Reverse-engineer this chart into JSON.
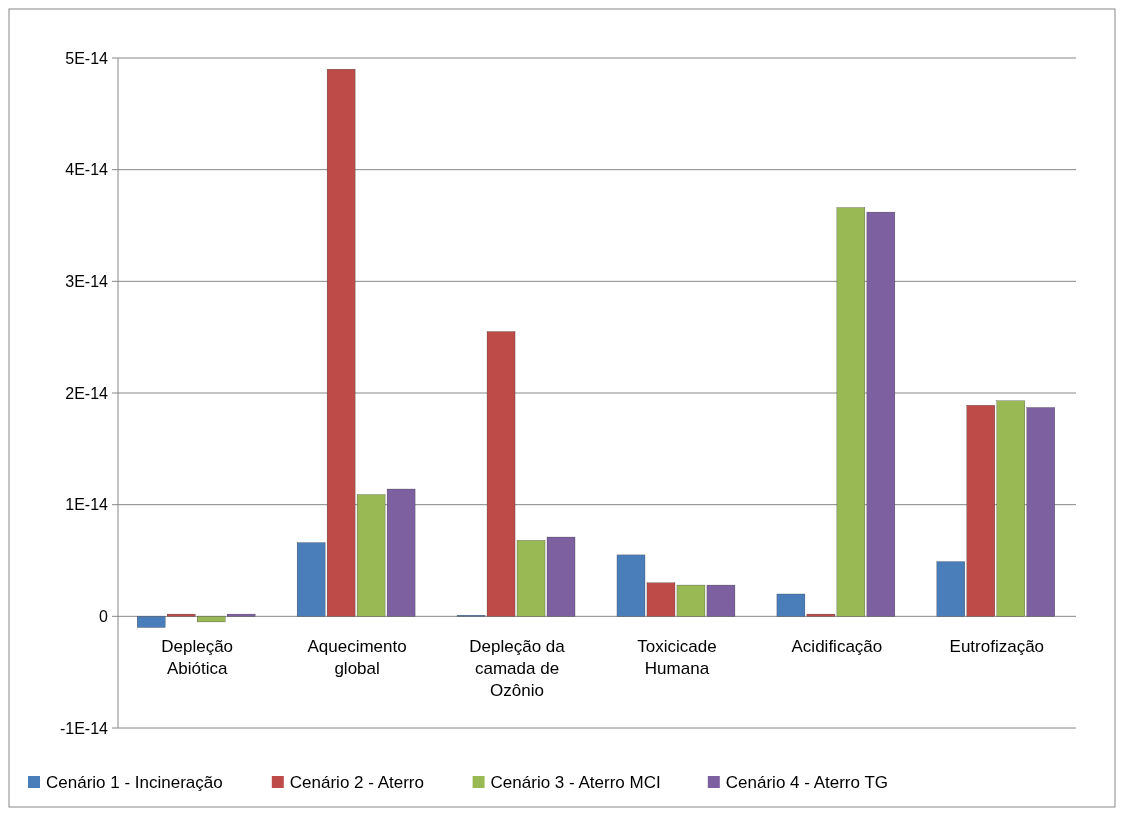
{
  "chart_data": {
    "type": "bar",
    "categories": [
      "Depleção Abiótica",
      "Aquecimento global",
      "Depleção da camada de Ozônio",
      "Toxicicade Humana",
      "Acidificação",
      "Eutrofização"
    ],
    "series": [
      {
        "name": "Cenário 1 - Incineração",
        "color": "#4a7ebb",
        "values": [
          -1e-15,
          6.6e-15,
          1e-16,
          5.5e-15,
          2e-15,
          4.9e-15
        ]
      },
      {
        "name": "Cenário 2 - Aterro",
        "color": "#be4b48",
        "values": [
          2e-16,
          4.9e-14,
          2.55e-14,
          3e-15,
          2e-16,
          1.89e-14
        ]
      },
      {
        "name": "Cenário 3 - Aterro MCI",
        "color": "#98b954",
        "values": [
          -5e-16,
          1.09e-14,
          6.8e-15,
          2.8e-15,
          3.66e-14,
          1.93e-14
        ]
      },
      {
        "name": "Cenário 4 - Aterro TG",
        "color": "#7d60a0",
        "values": [
          2e-16,
          1.14e-14,
          7.1e-15,
          2.8e-15,
          3.62e-14,
          1.87e-14
        ]
      }
    ],
    "ylim": [
      -1e-14,
      5e-14
    ],
    "yticks": [
      {
        "value": -1e-14,
        "label": "-1E-14"
      },
      {
        "value": 0,
        "label": "0"
      },
      {
        "value": 1e-14,
        "label": "1E-14"
      },
      {
        "value": 2e-14,
        "label": "2E-14"
      },
      {
        "value": 3e-14,
        "label": "3E-14"
      },
      {
        "value": 4e-14,
        "label": "4E-14"
      },
      {
        "value": 5e-14,
        "label": "5E-14"
      }
    ],
    "grid": "y",
    "legend": "bottom"
  }
}
